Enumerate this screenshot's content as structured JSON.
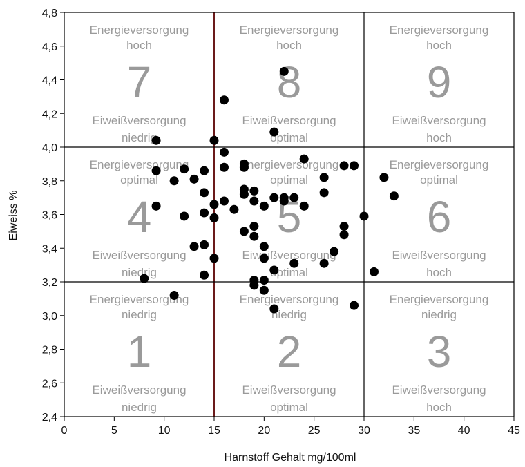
{
  "chart_data": {
    "type": "scatter",
    "xlabel": "Harnstoff Gehalt mg/100ml",
    "ylabel": "Eiweiss %",
    "xlim": [
      0,
      45
    ],
    "ylim": [
      2.4,
      4.8
    ],
    "x_ticks": [
      "0",
      "5",
      "10",
      "15",
      "20",
      "25",
      "30",
      "35",
      "40",
      "45"
    ],
    "y_ticks": [
      "2,4",
      "2,6",
      "2,8",
      "3,0",
      "3,2",
      "3,4",
      "3,6",
      "3,8",
      "4,0",
      "4,2",
      "4,4",
      "4,6",
      "4,8"
    ],
    "grid": false,
    "x_dividers": [
      15,
      30
    ],
    "y_dividers": [
      3.2,
      4.0
    ],
    "colors": {
      "points": "#000000",
      "zone_text": "#9a9a9a",
      "divider": "#000000",
      "highlight_divider": "#6b1a1a"
    },
    "zones": [
      {
        "number": "1",
        "x_range": [
          0,
          15
        ],
        "y_range": [
          2.4,
          3.2
        ],
        "energie": [
          "Energieversorgung",
          "niedrig"
        ],
        "eiweiss": [
          "Eiweißversorgung",
          "niedrig"
        ]
      },
      {
        "number": "2",
        "x_range": [
          15,
          30
        ],
        "y_range": [
          2.4,
          3.2
        ],
        "energie": [
          "Energieversorgung",
          "niedrig"
        ],
        "eiweiss": [
          "Eiweißversorgung",
          "optimal"
        ]
      },
      {
        "number": "3",
        "x_range": [
          30,
          45
        ],
        "y_range": [
          2.4,
          3.2
        ],
        "energie": [
          "Energieversorgung",
          "niedrig"
        ],
        "eiweiss": [
          "Eiweißversorgung",
          "hoch"
        ]
      },
      {
        "number": "4",
        "x_range": [
          0,
          15
        ],
        "y_range": [
          3.2,
          4.0
        ],
        "energie": [
          "Energieversorgung",
          "optimal"
        ],
        "eiweiss": [
          "Eiweißversorgung",
          "niedrig"
        ]
      },
      {
        "number": "5",
        "x_range": [
          15,
          30
        ],
        "y_range": [
          3.2,
          4.0
        ],
        "energie": [
          "Energieversorgung",
          "optimal"
        ],
        "eiweiss": [
          "Eiweißversorgung",
          "optimal"
        ]
      },
      {
        "number": "6",
        "x_range": [
          30,
          45
        ],
        "y_range": [
          3.2,
          4.0
        ],
        "energie": [
          "Energieversorgung",
          "optimal"
        ],
        "eiweiss": [
          "Eiweißversorgung",
          "hoch"
        ]
      },
      {
        "number": "7",
        "x_range": [
          0,
          15
        ],
        "y_range": [
          4.0,
          4.8
        ],
        "energie": [
          "Energieversorgung",
          "hoch"
        ],
        "eiweiss": [
          "Eiweißversorgung",
          "niedrig"
        ]
      },
      {
        "number": "8",
        "x_range": [
          15,
          30
        ],
        "y_range": [
          4.0,
          4.8
        ],
        "energie": [
          "Energieversorgung",
          "hoch"
        ],
        "eiweiss": [
          "Eiweißversorgung",
          "optimal"
        ]
      },
      {
        "number": "9",
        "x_range": [
          30,
          45
        ],
        "y_range": [
          4.0,
          4.8
        ],
        "energie": [
          "Energieversorgung",
          "hoch"
        ],
        "eiweiss": [
          "Eiweißversorgung",
          "hoch"
        ]
      }
    ],
    "points": [
      {
        "x": 9.2,
        "y": 4.04
      },
      {
        "x": 15.0,
        "y": 4.04
      },
      {
        "x": 16.0,
        "y": 4.28
      },
      {
        "x": 22.0,
        "y": 4.45
      },
      {
        "x": 21.0,
        "y": 4.09
      },
      {
        "x": 16.0,
        "y": 3.97
      },
      {
        "x": 9.2,
        "y": 3.86
      },
      {
        "x": 11.0,
        "y": 3.8
      },
      {
        "x": 12.0,
        "y": 3.87
      },
      {
        "x": 13.0,
        "y": 3.81
      },
      {
        "x": 14.0,
        "y": 3.86
      },
      {
        "x": 16.0,
        "y": 3.88
      },
      {
        "x": 18.0,
        "y": 3.9
      },
      {
        "x": 18.0,
        "y": 3.88
      },
      {
        "x": 24.0,
        "y": 3.93
      },
      {
        "x": 26.0,
        "y": 3.82
      },
      {
        "x": 28.0,
        "y": 3.89
      },
      {
        "x": 29.0,
        "y": 3.89
      },
      {
        "x": 32.0,
        "y": 3.82
      },
      {
        "x": 14.0,
        "y": 3.73
      },
      {
        "x": 18.0,
        "y": 3.75
      },
      {
        "x": 18.0,
        "y": 3.72
      },
      {
        "x": 19.0,
        "y": 3.74
      },
      {
        "x": 21.0,
        "y": 3.7
      },
      {
        "x": 22.0,
        "y": 3.7
      },
      {
        "x": 22.0,
        "y": 3.68
      },
      {
        "x": 23.0,
        "y": 3.7
      },
      {
        "x": 26.0,
        "y": 3.73
      },
      {
        "x": 33.0,
        "y": 3.71
      },
      {
        "x": 9.2,
        "y": 3.65
      },
      {
        "x": 15.0,
        "y": 3.66
      },
      {
        "x": 16.0,
        "y": 3.68
      },
      {
        "x": 17.0,
        "y": 3.63
      },
      {
        "x": 19.0,
        "y": 3.68
      },
      {
        "x": 20.0,
        "y": 3.65
      },
      {
        "x": 24.0,
        "y": 3.65
      },
      {
        "x": 12.0,
        "y": 3.59
      },
      {
        "x": 14.0,
        "y": 3.61
      },
      {
        "x": 15.0,
        "y": 3.58
      },
      {
        "x": 30.0,
        "y": 3.59
      },
      {
        "x": 18.0,
        "y": 3.5
      },
      {
        "x": 19.0,
        "y": 3.53
      },
      {
        "x": 19.0,
        "y": 3.47
      },
      {
        "x": 28.0,
        "y": 3.53
      },
      {
        "x": 28.0,
        "y": 3.48
      },
      {
        "x": 13.0,
        "y": 3.41
      },
      {
        "x": 14.0,
        "y": 3.42
      },
      {
        "x": 20.0,
        "y": 3.41
      },
      {
        "x": 27.0,
        "y": 3.38
      },
      {
        "x": 15.0,
        "y": 3.34
      },
      {
        "x": 20.0,
        "y": 3.34
      },
      {
        "x": 23.0,
        "y": 3.31
      },
      {
        "x": 26.0,
        "y": 3.31
      },
      {
        "x": 21.0,
        "y": 3.27
      },
      {
        "x": 14.0,
        "y": 3.24
      },
      {
        "x": 31.0,
        "y": 3.26
      },
      {
        "x": 8.0,
        "y": 3.22
      },
      {
        "x": 19.0,
        "y": 3.21
      },
      {
        "x": 19.0,
        "y": 3.18
      },
      {
        "x": 20.0,
        "y": 3.21
      },
      {
        "x": 20.0,
        "y": 3.15
      },
      {
        "x": 11.0,
        "y": 3.12
      },
      {
        "x": 21.0,
        "y": 3.04
      },
      {
        "x": 29.0,
        "y": 3.06
      }
    ]
  }
}
